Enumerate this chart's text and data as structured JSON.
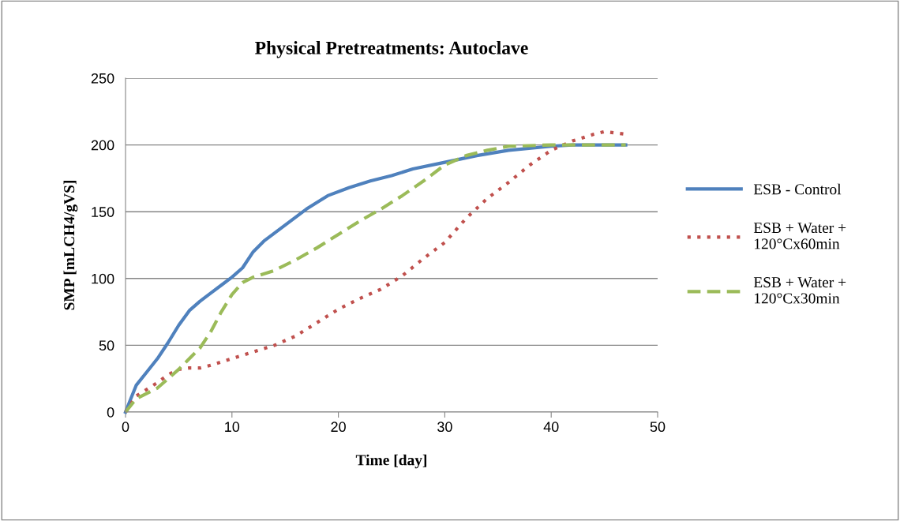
{
  "chart_data": {
    "type": "line",
    "title": "Physical Pretreatments: Autoclave",
    "xlabel": "Time [day]",
    "ylabel": "SMP [mLCH4/gVS]",
    "xlim": [
      0,
      50
    ],
    "xticks": [
      0,
      10,
      20,
      30,
      40,
      50
    ],
    "ylim": [
      0,
      250
    ],
    "yticks": [
      0,
      50,
      100,
      150,
      200,
      250
    ],
    "grid": "y",
    "legend": "right",
    "marker": "none",
    "series": [
      {
        "name": "ESB - Control",
        "color": "#4f81bd",
        "line_style": "solid",
        "x": [
          0,
          0.5,
          1,
          2,
          3,
          4,
          5,
          6,
          7,
          8,
          9,
          10,
          11,
          12,
          13,
          15,
          17,
          19,
          21,
          23,
          25,
          27,
          30,
          33,
          36,
          40,
          42,
          47
        ],
        "values": [
          0,
          10,
          20,
          30,
          40,
          52,
          65,
          76,
          83,
          89,
          95,
          101,
          108,
          120,
          128,
          140,
          152,
          162,
          168,
          173,
          177,
          182,
          187,
          192,
          196,
          199,
          200,
          200
        ]
      },
      {
        "name": "ESB + Water +\n120°Cx60min",
        "color": "#c0504d",
        "line_style": "dotted",
        "x": [
          0,
          1,
          2,
          3,
          4,
          5,
          6,
          7,
          8,
          10,
          12,
          14,
          16,
          18,
          20,
          22,
          24,
          26,
          28,
          30,
          32,
          34,
          36,
          38,
          40,
          42,
          44,
          45,
          46,
          47
        ],
        "values": [
          0,
          12,
          17,
          22,
          28,
          32,
          33,
          33,
          35,
          40,
          45,
          50,
          57,
          67,
          77,
          85,
          92,
          102,
          115,
          127,
          145,
          160,
          172,
          185,
          196,
          203,
          208,
          210,
          209,
          208
        ]
      },
      {
        "name": "ESB + Water +\n120°Cx30min",
        "color": "#9bbb59",
        "line_style": "dashed",
        "x": [
          0,
          1,
          2,
          3,
          4,
          5,
          6,
          7,
          8,
          9,
          10,
          11,
          12,
          14,
          16,
          18,
          20,
          22,
          24,
          26,
          28,
          30,
          32,
          34,
          36,
          40,
          47
        ],
        "values": [
          0,
          10,
          14,
          18,
          25,
          32,
          40,
          48,
          60,
          75,
          88,
          97,
          101,
          106,
          114,
          123,
          133,
          143,
          152,
          162,
          173,
          185,
          192,
          196,
          199,
          200,
          200
        ]
      }
    ]
  }
}
